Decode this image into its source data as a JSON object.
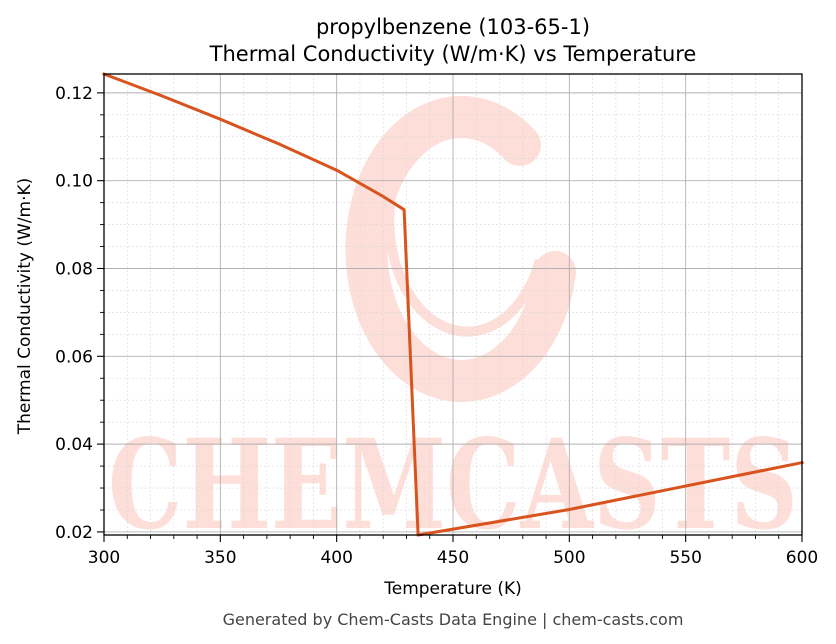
{
  "chart_data": {
    "type": "line",
    "title_line1": "propylbenzene (103-65-1)",
    "title_line2": "Thermal Conductivity (W/m·K) vs Temperature",
    "xlabel": "Temperature (K)",
    "ylabel": "Thermal Conductivity (W/m·K)",
    "xlim": [
      300,
      600
    ],
    "ylim": [
      0.0193,
      0.1243
    ],
    "x_ticks": [
      300,
      350,
      400,
      450,
      500,
      550,
      600
    ],
    "x_tick_labels": [
      "300",
      "350",
      "400",
      "450",
      "500",
      "550",
      "600"
    ],
    "y_ticks": [
      0.02,
      0.04,
      0.06,
      0.08,
      0.1,
      0.12
    ],
    "y_tick_labels": [
      "0.02",
      "0.04",
      "0.06",
      "0.08",
      "0.10",
      "0.12"
    ],
    "grid": true,
    "line_color": "#d9531e",
    "series": [
      {
        "x": [
          300,
          325,
          350,
          375,
          400,
          420,
          429,
          435,
          500,
          600
        ],
        "y": [
          0.1243,
          0.1193,
          0.114,
          0.1084,
          0.1024,
          0.0964,
          0.0934,
          0.0193,
          0.0251,
          0.0358
        ]
      }
    ]
  },
  "watermark": {
    "text": "CHEMCASTS",
    "color": "#fbb8ad"
  },
  "footer": "Generated by Chem-Casts Data Engine | chem-casts.com"
}
